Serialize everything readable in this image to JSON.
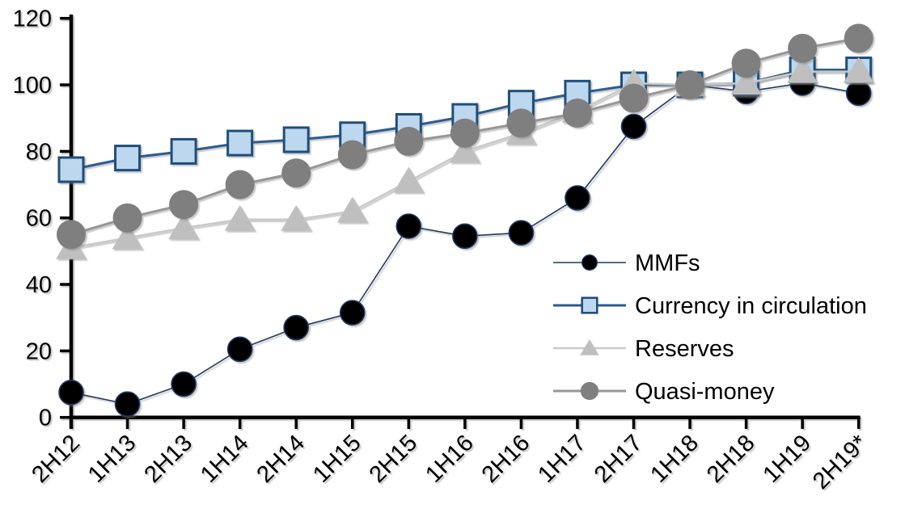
{
  "chart_data": {
    "type": "line",
    "title": "",
    "xlabel": "",
    "ylabel": "",
    "background_color": "#ffffff",
    "axis_color": "#000000",
    "text_color": "#000000",
    "grid": false,
    "legend_position": "middle-right",
    "ylim": [
      0,
      120
    ],
    "yticks": [
      0,
      20,
      40,
      60,
      80,
      100,
      120
    ],
    "categories": [
      "2H12",
      "1H13",
      "2H13",
      "1H14",
      "2H14",
      "1H15",
      "2H15",
      "1H16",
      "2H16",
      "1H17",
      "2H17",
      "1H18",
      "2H18",
      "1H19",
      "2H19*"
    ],
    "series": [
      {
        "name": "MMFs",
        "values": [
          7.5,
          4,
          10,
          20.5,
          27,
          31.5,
          57.5,
          54.5,
          55.5,
          66,
          87.5,
          100,
          98,
          100.5,
          97.5
        ],
        "line_color": "#1F3864",
        "line_width": 1.6,
        "marker": {
          "shape": "circle",
          "fill": "#000000",
          "stroke": "#1F3864",
          "stroke_width": 1.6,
          "size": 30
        }
      },
      {
        "name": "Currency in circulation",
        "values": [
          74.5,
          78,
          80,
          82.5,
          83.5,
          85,
          87.5,
          90.5,
          94.5,
          97.5,
          100,
          100,
          100.5,
          104.5,
          104.5
        ],
        "line_color": "#2E5B8F",
        "line_width": 3,
        "marker": {
          "shape": "square",
          "fill": "#BDD7EE",
          "stroke": "#1F4E79",
          "stroke_width": 3,
          "size": 30
        }
      },
      {
        "name": "Reserves",
        "values": [
          51,
          54,
          57,
          59.5,
          59.5,
          62,
          71,
          80,
          85.5,
          92,
          100.5,
          100,
          100.5,
          104,
          104
        ],
        "line_color": "#C9C9C9",
        "line_width": 2.5,
        "marker": {
          "shape": "triangle",
          "fill": "#BFBFBF",
          "stroke": "none",
          "stroke_width": 0,
          "size": 38
        }
      },
      {
        "name": "Quasi-money",
        "values": [
          55,
          60,
          64,
          70,
          73.5,
          79,
          83,
          85.5,
          88.5,
          91.5,
          96,
          100,
          106.5,
          111,
          114
        ],
        "line_color": "#969696",
        "line_width": 3,
        "marker": {
          "shape": "circle",
          "fill": "#7F7F7F",
          "stroke": "none",
          "stroke_width": 0,
          "size": 36
        }
      }
    ]
  }
}
